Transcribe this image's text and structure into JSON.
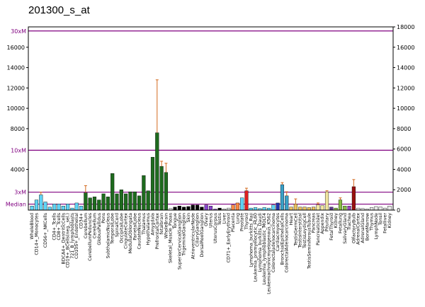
{
  "chart_data": {
    "type": "bar",
    "title": "201300_s_at",
    "ylim": [
      0,
      18000
    ],
    "left_ticks": [
      {
        "label": "16000",
        "value": 16000
      },
      {
        "label": "14000",
        "value": 14000
      },
      {
        "label": "12000",
        "value": 12000
      },
      {
        "label": "10000",
        "value": 10000
      },
      {
        "label": "8000",
        "value": 8000
      },
      {
        "label": "4000",
        "value": 4000
      }
    ],
    "right_ticks": [
      0,
      2000,
      4000,
      6000,
      8000,
      10000,
      12000,
      14000,
      16000,
      18000
    ],
    "reference_lines": [
      {
        "label": "30xM",
        "value": 17600
      },
      {
        "label": "10xM",
        "value": 5880
      },
      {
        "label": "3xM",
        "value": 1760
      },
      {
        "label": "Median",
        "value": 588
      }
    ],
    "tissues": [
      {
        "label": "WholeBlood",
        "value": 400,
        "err": 0,
        "color": "#5fd3f5"
      },
      {
        "label": "CD14+_Monocytes",
        "value": 1000,
        "err": 0,
        "color": "#5fd3f5"
      },
      {
        "label": "",
        "value": 1500,
        "err": 250,
        "color": "#5fd3f5"
      },
      {
        "label": "CD56+_NKCells",
        "value": 800,
        "err": 0,
        "color": "#5fd3f5"
      },
      {
        "label": "",
        "value": 300,
        "err": 0,
        "color": "#5fd3f5"
      },
      {
        "label": "CD4+_Tcells",
        "value": 600,
        "err": 0,
        "color": "#5fd3f5"
      },
      {
        "label": "CD8+_Tcells",
        "value": 600,
        "err": 0,
        "color": "#5fd3f5"
      },
      {
        "label": "BDCA4+_DentriticCells",
        "value": 400,
        "err": 0,
        "color": "#5fd3f5"
      },
      {
        "label": "CD19+_BCells(neg._sel.)",
        "value": 600,
        "err": 0,
        "color": "#5fd3f5"
      },
      {
        "label": "721_B_lymphoblasts",
        "value": 200,
        "err": 0,
        "color": "#5fd3f5"
      },
      {
        "label": "CD105+_Endothelial",
        "value": 700,
        "err": 0,
        "color": "#5fd3f5"
      },
      {
        "label": "CD34+",
        "value": 400,
        "err": 0,
        "color": "#5fd3f5"
      },
      {
        "label": "Cerebellum",
        "value": 1700,
        "err": 700,
        "color": "#1e6b1e"
      },
      {
        "label": "CerebellumPeduncles",
        "value": 1200,
        "err": 0,
        "color": "#1e6b1e"
      },
      {
        "label": "Cerebellum",
        "value": 1300,
        "err": 0,
        "color": "#1e6b1e"
      },
      {
        "label": "GlobusPallidus",
        "value": 1000,
        "err": 0,
        "color": "#1e6b1e"
      },
      {
        "label": "Pons",
        "value": 1600,
        "err": 0,
        "color": "#1e6b1e"
      },
      {
        "label": "SubthalamicNucleus",
        "value": 1300,
        "err": 0,
        "color": "#1e6b1e"
      },
      {
        "label": "TemporalLobe",
        "value": 3600,
        "err": 0,
        "color": "#1e6b1e"
      },
      {
        "label": "SpinalCord",
        "value": 1600,
        "err": 0,
        "color": "#1e6b1e"
      },
      {
        "label": "OccipitalLobe",
        "value": 2000,
        "err": 0,
        "color": "#1e6b1e"
      },
      {
        "label": "CingulateCortex",
        "value": 1600,
        "err": 0,
        "color": "#1e6b1e"
      },
      {
        "label": "MedullaOblongata",
        "value": 1800,
        "err": 0,
        "color": "#1e6b1e"
      },
      {
        "label": "ParietalLobe",
        "value": 1800,
        "err": 0,
        "color": "#1e6b1e"
      },
      {
        "label": "CaudateNucleus",
        "value": 1400,
        "err": 0,
        "color": "#1e6b1e"
      },
      {
        "label": "Thalamus",
        "value": 3400,
        "err": 0,
        "color": "#1e6b1e"
      },
      {
        "label": "Hypothalamus",
        "value": 1900,
        "err": 0,
        "color": "#1e6b1e"
      },
      {
        "label": "Amygdala",
        "value": 5200,
        "err": 0,
        "color": "#1e6b1e"
      },
      {
        "label": "PrefrontalCortex",
        "value": 7600,
        "err": 5200,
        "color": "#1e6b1e"
      },
      {
        "label": "fetalbrain",
        "value": 4300,
        "err": 500,
        "color": "#1e6b1e"
      },
      {
        "label": "WholeBrain",
        "value": 3700,
        "err": 900,
        "color": "#1e6b1e"
      },
      {
        "label": "Skeletal_Muscle_Psoas",
        "value": 150,
        "err": 0,
        "color": "#e8e8e8"
      },
      {
        "label": "Tongue",
        "value": 300,
        "err": 0,
        "color": "#000000"
      },
      {
        "label": "SuperiorCervicalGanglion",
        "value": 400,
        "err": 0,
        "color": "#000000"
      },
      {
        "label": "TrigeminalGanglion",
        "value": 300,
        "err": 0,
        "color": "#000000"
      },
      {
        "label": "Skin",
        "value": 350,
        "err": 0,
        "color": "#000000"
      },
      {
        "label": "AtrioventricularNode",
        "value": 500,
        "err": 0,
        "color": "#000000"
      },
      {
        "label": "CiliaryGanglion",
        "value": 500,
        "err": 0,
        "color": "#000000"
      },
      {
        "label": "DorsalRootGanglion",
        "value": 300,
        "err": 0,
        "color": "#000000"
      },
      {
        "label": "Ovary",
        "value": 500,
        "err": 0,
        "color": "#8844cc"
      },
      {
        "label": "Uterus",
        "value": 400,
        "err": 0,
        "color": "#8844cc"
      },
      {
        "label": "UterusCorpus",
        "value": 100,
        "err": 0,
        "color": "#8844cc"
      },
      {
        "label": "Testis",
        "value": 200,
        "err": 0,
        "color": "#000000"
      },
      {
        "label": "Liver",
        "value": 100,
        "err": 0,
        "color": "#e8e8e8"
      },
      {
        "label": "CD71+_EarlyErythroid",
        "value": 200,
        "err": 0,
        "color": "#e8e8e8"
      },
      {
        "label": "Placenta",
        "value": 500,
        "err": 0,
        "color": "#ff8844"
      },
      {
        "label": "Lung",
        "value": 700,
        "err": 0,
        "color": "#ff8844"
      },
      {
        "label": "Prostate",
        "value": 1200,
        "err": 0,
        "color": "#5fd3f5"
      },
      {
        "label": "Thyroid",
        "value": 1900,
        "err": 250,
        "color": "#e02020"
      },
      {
        "label": "Lymphoma_burkitts_Raji",
        "value": 200,
        "err": 0,
        "color": "#5fd3f5"
      },
      {
        "label": "Leukemia_promyelocytic_HL60",
        "value": 250,
        "err": 0,
        "color": "#5fd3f5"
      },
      {
        "label": "Lymphoma_burkitts_Daudi",
        "value": 150,
        "err": 0,
        "color": "#5fd3f5"
      },
      {
        "label": "Leukemia_lymphoblastic_MOLT4",
        "value": 250,
        "err": 0,
        "color": "#5fd3f5"
      },
      {
        "label": "Leukemiachronicmyelogenous_K562",
        "value": 200,
        "err": 0,
        "color": "#5fd3f5"
      },
      {
        "label": "Colorectaladenocarcinoma",
        "value": 500,
        "err": 0,
        "color": "#5fd3f5"
      },
      {
        "label": "Cardiacmyocytes",
        "value": 700,
        "err": 0,
        "color": "#2233aa"
      },
      {
        "label": "BronchialEpithelialCells",
        "value": 2500,
        "err": 200,
        "color": "#3aa0c8"
      },
      {
        "label": "ColorectalAdenocarcinoma",
        "value": 1400,
        "err": 400,
        "color": "#3aa0c8"
      },
      {
        "label": "Heart",
        "value": 300,
        "err": 0,
        "color": "#eac060"
      },
      {
        "label": "TestisGermCell",
        "value": 600,
        "err": 500,
        "color": "#eac060"
      },
      {
        "label": "TestisInterstitial",
        "value": 300,
        "err": 0,
        "color": "#eac060"
      },
      {
        "label": "TestisLeydigCell",
        "value": 300,
        "err": 0,
        "color": "#eac060"
      },
      {
        "label": "TestisSeminiferousTubule",
        "value": 250,
        "err": 0,
        "color": "#eac060"
      },
      {
        "label": "Pancreas",
        "value": 300,
        "err": 0,
        "color": "#eac060"
      },
      {
        "label": "PancreaticIslet",
        "value": 500,
        "err": 200,
        "color": "#f2e6a0"
      },
      {
        "label": "Appendix",
        "value": 450,
        "err": 0,
        "color": "#f2e6a0"
      },
      {
        "label": "Pituitary",
        "value": 1800,
        "err": 100,
        "color": "#f2e6a0"
      },
      {
        "label": "FetalThyroid",
        "value": 300,
        "err": 0,
        "color": "#5a3a8a"
      },
      {
        "label": "Kidney",
        "value": 200,
        "err": 0,
        "color": "#88bb44"
      },
      {
        "label": "Fetallung",
        "value": 1000,
        "err": 200,
        "color": "#88bb44"
      },
      {
        "label": "SalivaryGland",
        "value": 400,
        "err": 0,
        "color": "#88bb44"
      },
      {
        "label": "Trachea",
        "value": 400,
        "err": 0,
        "color": "#9944bb"
      },
      {
        "label": "OlfactoryBulb",
        "value": 2300,
        "err": 700,
        "color": "#9a1010"
      },
      {
        "label": "AdrenalCortex",
        "value": 200,
        "err": 0,
        "color": "#e8e8e8"
      },
      {
        "label": "AdrenalGland",
        "value": 150,
        "err": 0,
        "color": "#e8e8e8"
      },
      {
        "label": "BoneMarrow",
        "value": 100,
        "err": 0,
        "color": "#e8e8e8"
      },
      {
        "label": "Thymus",
        "value": 250,
        "err": 0,
        "color": "#e8e8e8"
      },
      {
        "label": "LymphNode",
        "value": 350,
        "err": 0,
        "color": "#e8e8e8"
      },
      {
        "label": "Tonsil",
        "value": 300,
        "err": 0,
        "color": "#e8e8e8"
      },
      {
        "label": "Fetalliver",
        "value": 200,
        "err": 0,
        "color": "#e8e8e8"
      },
      {
        "label": "Kidney",
        "value": 400,
        "err": 0,
        "color": "#e8e8e8"
      }
    ]
  }
}
